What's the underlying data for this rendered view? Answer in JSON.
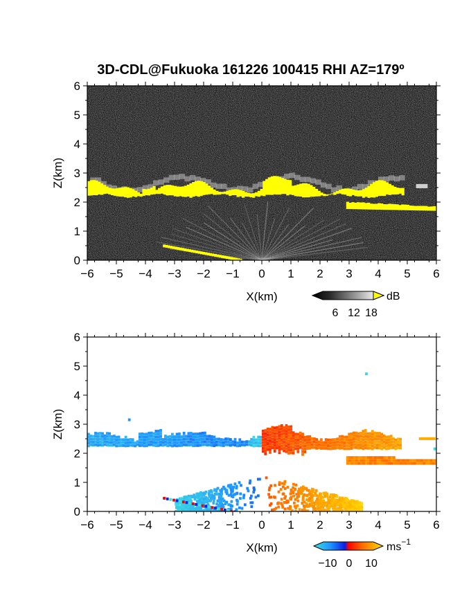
{
  "title": "3D-CDL@Fukuoka 161226 100415 RHI AZ=179º",
  "chart_data": [
    {
      "type": "heatmap",
      "panel": "top",
      "xlabel": "X(km)",
      "ylabel": "Z(km)",
      "xlim": [
        -6,
        6
      ],
      "ylim": [
        0,
        6
      ],
      "xticks": [
        "−6",
        "−5",
        "−4",
        "−3",
        "−2",
        "−1",
        "0",
        "1",
        "2",
        "3",
        "4",
        "5",
        "6"
      ],
      "yticks": [
        "0",
        "1",
        "2",
        "3",
        "4",
        "5",
        "6"
      ],
      "colorbar": {
        "unit": "dB",
        "ticks": [
          "6",
          "12",
          "18"
        ],
        "range": [
          0,
          20
        ],
        "scale": "grayscale, yellow above 18"
      },
      "features": [
        {
          "label": "cloud-base layer",
          "x": [
            -6.0,
            4.8
          ],
          "z_top": [
            2.45,
            2.85
          ],
          "z_bottom": [
            2.2,
            2.4
          ],
          "value": "> 18 dB"
        },
        {
          "label": "lower layer",
          "x": [
            2.9,
            6.0
          ],
          "z": [
            1.75,
            2.0
          ],
          "value": "> 18 dB"
        },
        {
          "label": "ground clutter",
          "x": [
            -3.4,
            -0.7
          ],
          "z": [
            0.0,
            0.5
          ],
          "value": "> 18 dB"
        }
      ]
    },
    {
      "type": "heatmap",
      "panel": "bottom",
      "xlabel": "X(km)",
      "ylabel": "Z(km)",
      "xlim": [
        -6,
        6
      ],
      "ylim": [
        0,
        6
      ],
      "xticks": [
        "−6",
        "−5",
        "−4",
        "−3",
        "−2",
        "−1",
        "0",
        "1",
        "2",
        "3",
        "4",
        "5",
        "6"
      ],
      "yticks": [
        "0",
        "1",
        "2",
        "3",
        "4",
        "5",
        "6"
      ],
      "colorbar": {
        "unit": "ms",
        "unit_exp": "−1",
        "ticks": [
          "−10",
          "0",
          "10"
        ],
        "range": [
          -15,
          15
        ],
        "scale": "cyan-blue-red-yellow"
      },
      "features": [
        {
          "label": "upper layer, approaching side",
          "x": [
            -6.0,
            0.0
          ],
          "z": [
            2.3,
            2.9
          ],
          "doppler_ms": -7
        },
        {
          "label": "upper layer, receding side",
          "x": [
            0.0,
            4.8
          ],
          "z": [
            2.2,
            2.9
          ],
          "doppler_ms": 6
        },
        {
          "label": "lower layer",
          "x": [
            2.9,
            6.0
          ],
          "z": [
            1.7,
            2.0
          ],
          "doppler_ms": 8
        },
        {
          "label": "near-field fan, left",
          "x": [
            -3.0,
            0.0
          ],
          "z": [
            0.0,
            1.5
          ],
          "doppler_ms": -11
        },
        {
          "label": "near-field fan, right",
          "x": [
            0.0,
            3.4
          ],
          "z": [
            0.0,
            1.5
          ],
          "doppler_ms": 11
        }
      ]
    }
  ]
}
